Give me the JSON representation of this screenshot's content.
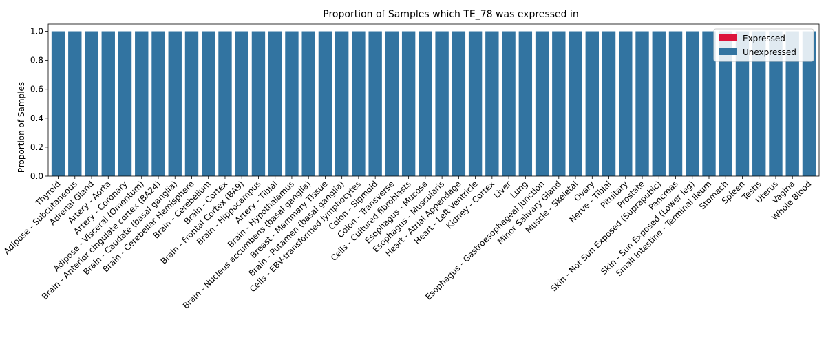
{
  "chart_data": {
    "type": "bar",
    "stacked": true,
    "title": "Proportion of Samples which TE_78 was expressed in",
    "xlabel": "",
    "ylabel": "Proportion of Samples",
    "ylim": [
      0,
      1.05
    ],
    "yticks": [
      "0.0",
      "0.2",
      "0.4",
      "0.6",
      "0.8",
      "1.0"
    ],
    "legend_position": "top-right",
    "categories": [
      "Thyroid",
      "Adipose - Subcutaneous",
      "Adrenal Gland",
      "Artery - Aorta",
      "Artery - Coronary",
      "Adipose - Visceral (Omentum)",
      "Brain - Anterior cingulate cortex (BA24)",
      "Brain - Caudate (basal ganglia)",
      "Brain - Cerebellar Hemisphere",
      "Brain - Cerebellum",
      "Brain - Cortex",
      "Brain - Frontal Cortex (BA9)",
      "Brain - Hippocampus",
      "Artery - Tibial",
      "Brain - Hypothalamus",
      "Brain - Nucleus accumbens (basal ganglia)",
      "Breast - Mammary Tissue",
      "Brain - Putamen (basal ganglia)",
      "Cells - EBV-transformed lymphocytes",
      "Colon - Sigmoid",
      "Colon - Transverse",
      "Cells - Cultured fibroblasts",
      "Esophagus - Mucosa",
      "Esophagus - Muscularis",
      "Heart - Atrial Appendage",
      "Heart - Left Ventricle",
      "Kidney - Cortex",
      "Liver",
      "Lung",
      "Esophagus - Gastroesophageal Junction",
      "Minor Salivary Gland",
      "Muscle - Skeletal",
      "Ovary",
      "Nerve - Tibial",
      "Pituitary",
      "Prostate",
      "Skin - Not Sun Exposed (Suprapubic)",
      "Pancreas",
      "Skin - Sun Exposed (Lower leg)",
      "Small Intestine - Terminal Ileum",
      "Stomach",
      "Spleen",
      "Testis",
      "Uterus",
      "Vagina",
      "Whole Blood"
    ],
    "series": [
      {
        "name": "Expressed",
        "color": "#dc143c",
        "values": [
          0,
          0,
          0,
          0,
          0,
          0,
          0,
          0,
          0,
          0,
          0,
          0,
          0,
          0,
          0,
          0,
          0,
          0,
          0,
          0,
          0,
          0,
          0,
          0,
          0,
          0,
          0,
          0,
          0,
          0,
          0,
          0,
          0,
          0,
          0,
          0,
          0,
          0,
          0,
          0,
          0,
          0,
          0,
          0,
          0,
          0
        ]
      },
      {
        "name": "Unexpressed",
        "color": "#3274a1",
        "values": [
          1,
          1,
          1,
          1,
          1,
          1,
          1,
          1,
          1,
          1,
          1,
          1,
          1,
          1,
          1,
          1,
          1,
          1,
          1,
          1,
          1,
          1,
          1,
          1,
          1,
          1,
          1,
          1,
          1,
          1,
          1,
          1,
          1,
          1,
          1,
          1,
          1,
          1,
          1,
          1,
          1,
          1,
          1,
          1,
          1,
          1
        ]
      }
    ]
  }
}
